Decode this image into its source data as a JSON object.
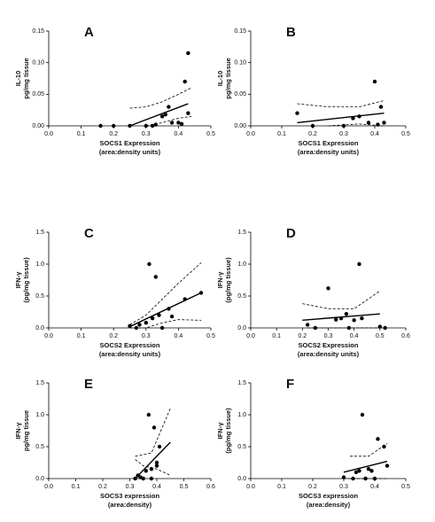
{
  "chart_data": [
    {
      "type": "scatter",
      "label": "A",
      "ylabel": [
        "IL-10",
        "pg/mg tissue"
      ],
      "xlabel": [
        "SOCS1 Expression",
        "(area:density units)"
      ],
      "x": [
        0.16,
        0.2,
        0.25,
        0.3,
        0.32,
        0.33,
        0.35,
        0.36,
        0.37,
        0.38,
        0.4,
        0.41,
        0.42,
        0.43,
        0.43
      ],
      "y": [
        0,
        0,
        0,
        0,
        0,
        0.002,
        0.015,
        0.018,
        0.03,
        0.005,
        0.005,
        0.003,
        0.07,
        0.115,
        0.02
      ],
      "fit": {
        "x": [
          0.25,
          0.43
        ],
        "y": [
          0,
          0.035
        ]
      },
      "ci_upper": {
        "x": [
          0.25,
          0.3,
          0.35,
          0.4,
          0.44
        ],
        "y": [
          0.028,
          0.03,
          0.038,
          0.05,
          0.06
        ]
      },
      "ci_lower": {
        "x": [
          0.3,
          0.35,
          0.4,
          0.44
        ],
        "y": [
          0,
          0.005,
          0.012,
          0.015
        ]
      },
      "xlim": [
        0,
        0.5
      ],
      "ylim": [
        0,
        0.15
      ],
      "xticks": [
        {
          "value": 0,
          "label": "0.0"
        },
        0.1,
        0.2,
        0.3,
        0.4,
        0.5
      ],
      "yticks": [
        {
          "value": 0,
          "label": "0.00"
        },
        {
          "value": 0.05,
          "label": "0.05"
        },
        {
          "value": 0.1,
          "label": "0.10"
        },
        {
          "value": 0.15,
          "label": "0.15"
        }
      ]
    },
    {
      "type": "scatter",
      "label": "B",
      "ylabel": [
        "IL-10",
        "pg/mg tissue"
      ],
      "xlabel": [
        "SOCS1 Expression",
        "(area:density units)"
      ],
      "x": [
        0.15,
        0.2,
        0.3,
        0.33,
        0.35,
        0.38,
        0.4,
        0.41,
        0.42,
        0.43
      ],
      "y": [
        0.02,
        0,
        0,
        0.012,
        0.015,
        0.005,
        0.07,
        0.002,
        0.03,
        0.005
      ],
      "fit": {
        "x": [
          0.15,
          0.43
        ],
        "y": [
          0.005,
          0.02
        ]
      },
      "ci_upper": {
        "x": [
          0.15,
          0.25,
          0.35,
          0.43
        ],
        "y": [
          0.035,
          0.03,
          0.03,
          0.04
        ]
      },
      "ci_lower": {
        "x": [
          0.25,
          0.35,
          0.43
        ],
        "y": [
          0,
          0.003,
          0
        ]
      },
      "xlim": [
        0,
        0.5
      ],
      "ylim": [
        0,
        0.15
      ],
      "xticks": [
        {
          "value": 0,
          "label": "0.0"
        },
        0.1,
        0.2,
        0.3,
        0.4,
        0.5
      ],
      "yticks": [
        {
          "value": 0,
          "label": "0.00"
        },
        {
          "value": 0.05,
          "label": "0.05"
        },
        {
          "value": 0.1,
          "label": "0.10"
        },
        {
          "value": 0.15,
          "label": "0.15"
        }
      ]
    },
    {
      "type": "scatter",
      "label": "C",
      "ylabel": [
        "IFN-γ",
        "(pg/mg tissue)"
      ],
      "xlabel": [
        "SOCS2 Expression",
        "(area:density units)"
      ],
      "x": [
        0.25,
        0.27,
        0.28,
        0.3,
        0.31,
        0.32,
        0.33,
        0.34,
        0.35,
        0.37,
        0.38,
        0.42,
        0.47
      ],
      "y": [
        0.03,
        0,
        0.05,
        0.08,
        1.0,
        0.15,
        0.8,
        0.2,
        0,
        0.3,
        0.18,
        0.45,
        0.55
      ],
      "fit": {
        "x": [
          0.25,
          0.47
        ],
        "y": [
          0.02,
          0.55
        ]
      },
      "ci_upper": {
        "x": [
          0.25,
          0.3,
          0.35,
          0.4,
          0.47
        ],
        "y": [
          0.05,
          0.2,
          0.45,
          0.7,
          1.02
        ]
      },
      "ci_lower": {
        "x": [
          0.25,
          0.3,
          0.35,
          0.4,
          0.47
        ],
        "y": [
          0,
          0,
          0.08,
          0.13,
          0.12
        ]
      },
      "xlim": [
        0,
        0.5
      ],
      "ylim": [
        0,
        1.5
      ],
      "xticks": [
        {
          "value": 0,
          "label": "0.0"
        },
        0.1,
        0.2,
        0.3,
        0.4,
        0.5
      ],
      "yticks": [
        {
          "value": 0,
          "label": "0.0"
        },
        0.5,
        {
          "value": 1,
          "label": "1.0"
        },
        1.5
      ]
    },
    {
      "type": "scatter",
      "label": "D",
      "ylabel": [
        "IFN-γ",
        "(pg/mg tissue)"
      ],
      "xlabel": [
        "SOCS2 Expression",
        "(area:density units)"
      ],
      "x": [
        0.22,
        0.25,
        0.3,
        0.33,
        0.35,
        0.37,
        0.38,
        0.4,
        0.42,
        0.43,
        0.5,
        0.52
      ],
      "y": [
        0.05,
        0,
        0.62,
        0.13,
        0.15,
        0.22,
        0,
        0.12,
        1.0,
        0.15,
        0.02,
        0
      ],
      "fit": {
        "x": [
          0.2,
          0.5
        ],
        "y": [
          0.12,
          0.22
        ]
      },
      "ci_upper": {
        "x": [
          0.2,
          0.3,
          0.4,
          0.5
        ],
        "y": [
          0.38,
          0.3,
          0.3,
          0.58
        ]
      },
      "ci_lower": {
        "x": [
          0.22,
          0.35,
          0.5
        ],
        "y": [
          0,
          0,
          0
        ]
      },
      "xlim": [
        0,
        0.6
      ],
      "ylim": [
        0,
        1.5
      ],
      "xticks": [
        {
          "value": 0,
          "label": "0.0"
        },
        0.1,
        0.2,
        0.3,
        0.4,
        0.5,
        0.6
      ],
      "yticks": [
        {
          "value": 0,
          "label": "0.0"
        },
        0.5,
        {
          "value": 1,
          "label": "1.0"
        },
        1.5
      ]
    },
    {
      "type": "scatter",
      "label": "E",
      "ylabel": [
        "IFN-γ",
        "pg/mg tissue"
      ],
      "xlabel": [
        "SOCS3 expression",
        "(area:density)"
      ],
      "x": [
        0.32,
        0.33,
        0.34,
        0.35,
        0.36,
        0.37,
        0.38,
        0.38,
        0.39,
        0.4,
        0.4,
        0.41
      ],
      "y": [
        0,
        0.05,
        0.02,
        0,
        0.12,
        1.0,
        0.15,
        0,
        0.8,
        0.2,
        0.25,
        0.5
      ],
      "fit": {
        "x": [
          0.32,
          0.45
        ],
        "y": [
          0,
          0.57
        ]
      },
      "ci_upper": {
        "x": [
          0.32,
          0.38,
          0.42,
          0.45
        ],
        "y": [
          0.35,
          0.4,
          0.8,
          1.1
        ]
      },
      "ci_lower": {
        "x": [
          0.32,
          0.35,
          0.4,
          0.45
        ],
        "y": [
          0.3,
          0.2,
          0.15,
          0.05
        ]
      },
      "xlim": [
        0,
        0.6
      ],
      "ylim": [
        0,
        1.5
      ],
      "xticks": [
        {
          "value": 0,
          "label": "0.0"
        },
        0.1,
        0.2,
        0.3,
        0.4,
        0.5,
        0.6
      ],
      "yticks": [
        {
          "value": 0,
          "label": "0.0"
        },
        0.5,
        {
          "value": 1,
          "label": "1.0"
        },
        1.5
      ]
    },
    {
      "type": "scatter",
      "label": "F",
      "ylabel": [
        "IFN-γ",
        "(pg/mg tissue)"
      ],
      "xlabel": [
        "SOCS3 expression",
        "(area:density)"
      ],
      "x": [
        0.3,
        0.33,
        0.34,
        0.35,
        0.36,
        0.37,
        0.38,
        0.39,
        0.4,
        0.41,
        0.43,
        0.44
      ],
      "y": [
        0.02,
        0,
        0.1,
        0.12,
        1.0,
        0,
        0.15,
        0.12,
        0,
        0.62,
        0.5,
        0.2
      ],
      "fit": {
        "x": [
          0.3,
          0.44
        ],
        "y": [
          0.1,
          0.27
        ]
      },
      "ci_upper": {
        "x": [
          0.32,
          0.38,
          0.44
        ],
        "y": [
          0.35,
          0.35,
          0.55
        ]
      },
      "ci_lower": {
        "x": [
          0.3,
          0.44
        ],
        "y": [
          0,
          0
        ]
      },
      "xlim": [
        0,
        0.5
      ],
      "ylim": [
        0,
        1.5
      ],
      "xticks": [
        {
          "value": 0,
          "label": "0.0"
        },
        0.1,
        0.2,
        0.3,
        0.4,
        0.5
      ],
      "yticks": [
        {
          "value": 0,
          "label": "0.0"
        },
        0.5,
        {
          "value": 1,
          "label": "1.0"
        },
        1.5
      ]
    }
  ]
}
